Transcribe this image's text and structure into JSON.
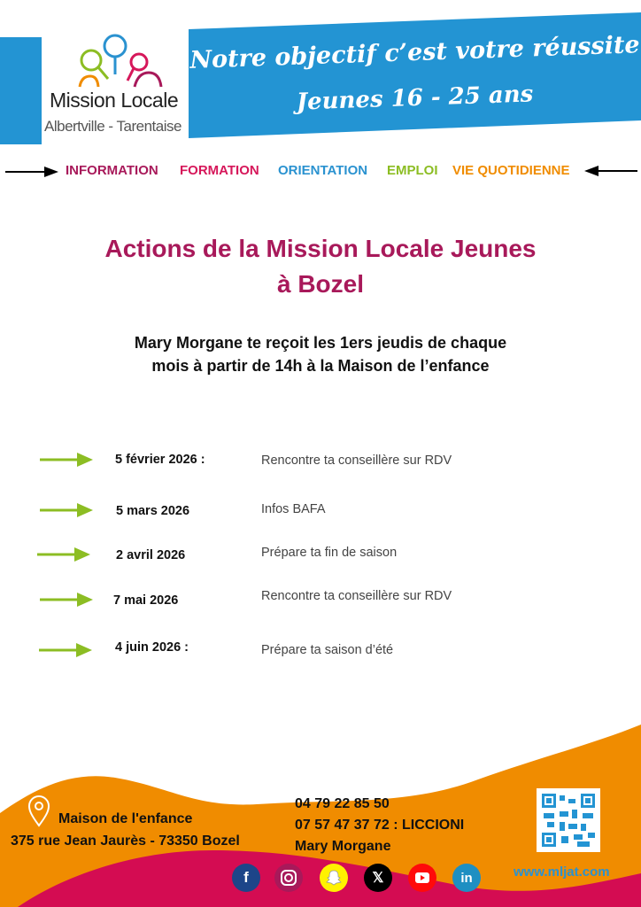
{
  "header": {
    "logo": {
      "name": "Mission Locale",
      "subtitle": "Albertville - Tarentaise"
    },
    "slogan": "Notre objectif c’est votre réussite",
    "audience": "Jeunes 16 - 25 ans",
    "brand_color": "#2394d3"
  },
  "nav": [
    {
      "label": "INFORMATION",
      "color": "#a8195a"
    },
    {
      "label": "FORMATION",
      "color": "#d6175a"
    },
    {
      "label": "ORIENTATION",
      "color": "#2a92d0"
    },
    {
      "label": "EMPLOI",
      "color": "#8cbd23"
    },
    {
      "label": "VIE QUOTIDIENNE",
      "color": "#f08c00"
    }
  ],
  "title": {
    "line1": "Actions de la Mission Locale Jeunes",
    "line2": "à Bozel"
  },
  "intro": {
    "line1": "Mary Morgane te reçoit  les 1ers jeudis de chaque",
    "line2": "mois à partir de 14h à la Maison de l’enfance"
  },
  "events": [
    {
      "date": "5 février 2026 :",
      "description": "Rencontre ta conseillère sur RDV"
    },
    {
      "date": "5 mars 2026",
      "description": "Infos BAFA"
    },
    {
      "date": "2 avril 2026",
      "description": "Prépare ta fin de saison"
    },
    {
      "date": "7 mai 2026",
      "description": "Rencontre ta conseillère sur RDV"
    },
    {
      "date": "4 juin 2026 :",
      "description": "Prépare ta saison d’été"
    }
  ],
  "footer": {
    "place": "Maison de l'enfance",
    "address": "375 rue Jean Jaurès - 73350 Bozel",
    "phone1": "04 79 22 85 50",
    "phone2": "07 57 47 37 72 : LICCIONI",
    "contact_name": "Mary Morgane",
    "website": "www.mljat.com",
    "socials": [
      "facebook",
      "instagram",
      "snapchat",
      "x",
      "youtube",
      "linkedin"
    ],
    "colors": {
      "orange": "#f08c00",
      "magenta": "#d40c52"
    }
  }
}
